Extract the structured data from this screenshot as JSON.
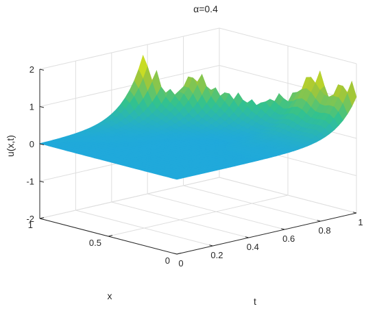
{
  "chart_data": {
    "type": "surface",
    "title": "α=0.4",
    "xlabel": "x",
    "ylabel": "t",
    "zlabel": "u(x,t)",
    "x_ticks": [
      "0",
      "0.5",
      "1"
    ],
    "t_ticks": [
      "0",
      "0.2",
      "0.4",
      "0.6",
      "0.8",
      "1"
    ],
    "z_ticks": [
      "-2",
      "-1",
      "0",
      "1",
      "2"
    ],
    "xlim": [
      0,
      1
    ],
    "tlim": [
      0,
      1
    ],
    "zlim": [
      -2,
      2
    ],
    "grid": true,
    "colormap": [
      "#3e26a8",
      "#2e6cf4",
      "#20a9db",
      "#33c28e",
      "#a8c734",
      "#f9fb0e"
    ],
    "surface": {
      "description_values": "u(x,t) is 0 along t=0 and grows towards t=1 with multiple crest ridges",
      "crests": [
        {
          "x": 1.0,
          "t": 0.58,
          "u": 1.8
        },
        {
          "x": 0.8,
          "t": 0.72,
          "u": 1.45
        },
        {
          "x": 0.62,
          "t": 0.8,
          "u": 1.0
        },
        {
          "x": 0.45,
          "t": 0.9,
          "u": 1.05
        },
        {
          "x": 0.25,
          "t": 0.97,
          "u": 1.7
        },
        {
          "x": 0.05,
          "t": 1.0,
          "u": 1.6
        }
      ]
    }
  }
}
